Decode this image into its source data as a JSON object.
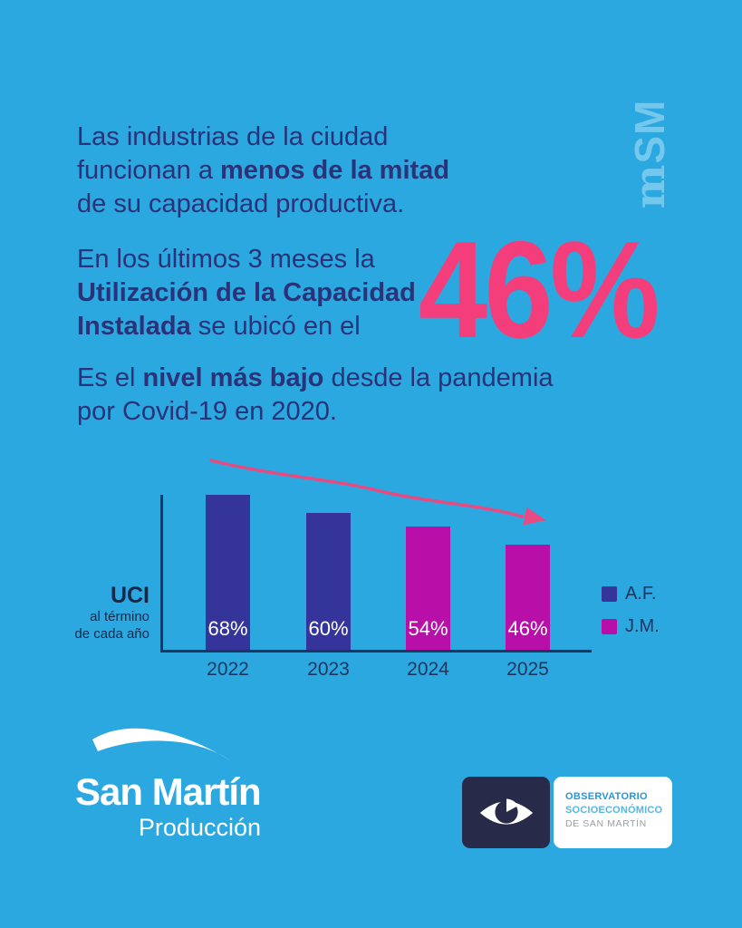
{
  "colors": {
    "background": "#2BA8E0",
    "text_navy": "#2B3277",
    "accent_pink": "#F33E7B",
    "arrow_pink": "#E84A82",
    "bar_navy": "#35349B",
    "bar_magenta": "#B80FA9",
    "axis_navy": "#1E355E",
    "watermark_blue": "#74C7ED",
    "badge_navy": "#272B49",
    "observatory_blue": "#2996D3",
    "observatory_light_blue": "#55B6E3",
    "observatory_gray": "#97A1A7"
  },
  "watermark": {
    "prefix": "m",
    "suffix": "SM"
  },
  "paragraphs": {
    "p1": {
      "l1": "Las industrias de la ciudad",
      "l2_regular": "funcionan a ",
      "l2_bold": "menos de la mitad",
      "l3": "de su capacidad productiva."
    },
    "p2": {
      "l1": "En los últimos 3 meses la",
      "l2_bold": "Utilización de la Capacidad",
      "l3_bold": "Instalada",
      "l3_regular": " se ubicó en el"
    },
    "big_stat": "46%",
    "p3": {
      "l1_a": "Es el ",
      "l1_bold": "nivel más bajo",
      "l1_c": " desde la pandemia",
      "l2": "por Covid-19 en 2020."
    }
  },
  "chart_data": {
    "type": "bar",
    "title": "UCI al término de cada año",
    "categories": [
      "2022",
      "2023",
      "2024",
      "2025"
    ],
    "values": [
      68,
      60,
      54,
      46
    ],
    "bar_labels": [
      "68%",
      "60%",
      "54%",
      "46%"
    ],
    "bar_colors": [
      "#35349B",
      "#35349B",
      "#B80FA9",
      "#B80FA9"
    ],
    "axis_max": 68,
    "ylim": [
      0,
      70
    ],
    "grid": false,
    "ylabel": "UCI",
    "ylabel_sub_1": "al término",
    "ylabel_sub_2": "de cada año",
    "legend_position": "right",
    "legend": [
      {
        "label": "A.F.",
        "color": "#35349B"
      },
      {
        "label": "J.M.",
        "color": "#B80FA9"
      }
    ],
    "annotation": "downward trend arrow"
  },
  "footer": {
    "logo_title": "San Martín",
    "logo_subtitle": "Producción",
    "observatory": {
      "line1": "OBSERVATORIO",
      "line2": "SOCIOECONÓMICO",
      "line3": "DE SAN MARTÍN"
    }
  }
}
